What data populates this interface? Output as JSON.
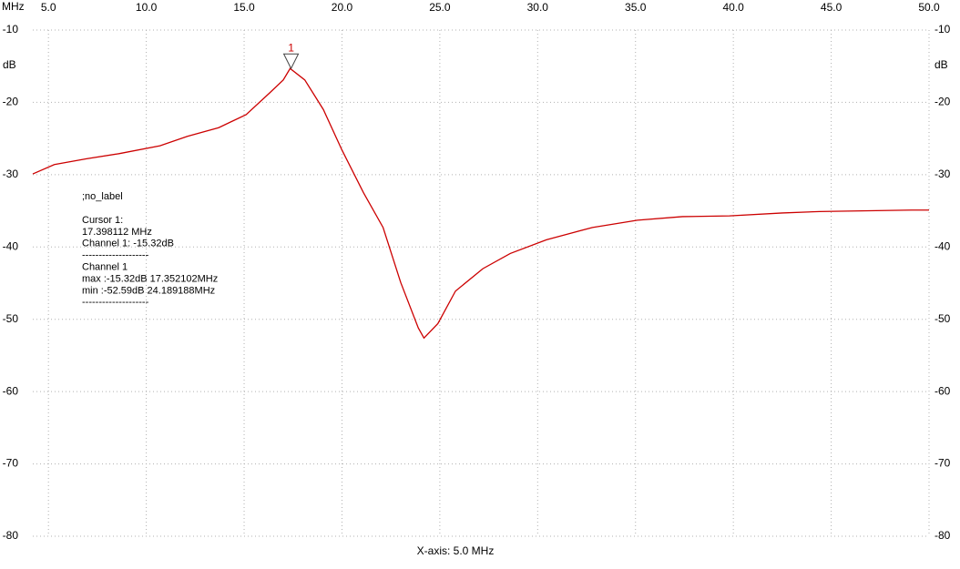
{
  "chart_data": {
    "type": "line",
    "x_unit": "MHz",
    "y_unit": "dB",
    "x_axis_label": "X-axis: 5.0 MHz",
    "xlim": [
      4.2,
      50
    ],
    "ylim": [
      -80,
      -10
    ],
    "xticks": [
      {
        "value": 5,
        "label": "5.0"
      },
      {
        "value": 10,
        "label": "10.0"
      },
      {
        "value": 15,
        "label": "15.0"
      },
      {
        "value": 20,
        "label": "20.0"
      },
      {
        "value": 25,
        "label": "25.0"
      },
      {
        "value": 30,
        "label": "30.0"
      },
      {
        "value": 35,
        "label": "35.0"
      },
      {
        "value": 40,
        "label": "40.0"
      },
      {
        "value": 45,
        "label": "45.0"
      },
      {
        "value": 50,
        "label": "50.0"
      }
    ],
    "yticks": [
      -10,
      -20,
      -30,
      -40,
      -50,
      -60,
      -70,
      -80
    ],
    "grid": true,
    "series": [
      {
        "color": "#cc0000",
        "x": [
          4.2,
          5.3,
          6.95,
          8.6,
          10.7,
          12.1,
          13.7,
          15.1,
          16.3,
          17.0,
          17.35,
          18.1,
          19.05,
          20.0,
          21.1,
          22.1,
          23.0,
          23.9,
          24.19,
          24.9,
          25.8,
          27.2,
          28.6,
          30.45,
          32.8,
          35.1,
          37.4,
          39.8,
          42.5,
          44.4,
          49.1,
          50
        ],
        "values": [
          -29.9,
          -28.6,
          -27.8,
          -27.1,
          -26.0,
          -24.7,
          -23.5,
          -21.7,
          -18.7,
          -16.9,
          -15.32,
          -16.9,
          -21.0,
          -26.6,
          -32.5,
          -37.3,
          -44.9,
          -51.2,
          -52.59,
          -50.6,
          -46.1,
          -43.0,
          -40.9,
          -39.0,
          -37.3,
          -36.3,
          -35.8,
          -35.7,
          -35.3,
          -35.1,
          -34.9,
          -34.9
        ]
      }
    ],
    "cursor": {
      "label": "1",
      "x": 17.398112,
      "y": -15.32
    },
    "info": [
      ";no_label",
      "Cursor 1:",
      "17.398112 MHz",
      "Channel 1: -15.32dB",
      "--------------------",
      "Channel 1",
      "max :-15.32dB 17.352102MHz",
      "min :-52.59dB 24.189188MHz",
      "--------------------"
    ]
  }
}
